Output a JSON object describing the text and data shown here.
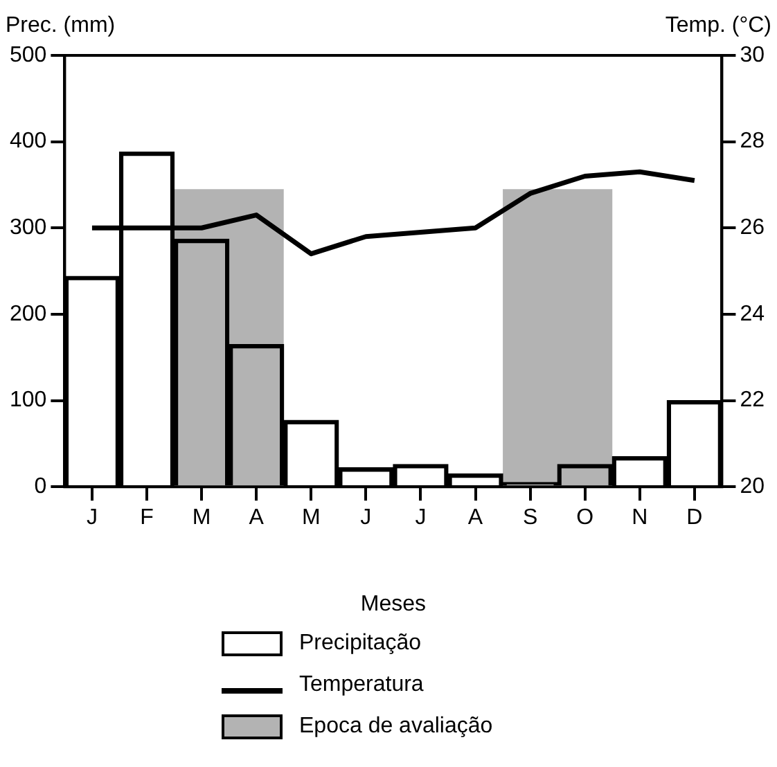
{
  "chart_data": {
    "type": "bar",
    "xlabel": "Meses",
    "ylabel": "Prec. (mm)",
    "y2label": "Temp. (°C)",
    "categories": [
      "J",
      "F",
      "M",
      "A",
      "M",
      "J",
      "J",
      "A",
      "S",
      "O",
      "N",
      "D"
    ],
    "series": [
      {
        "name": "Precipitação",
        "color": "#000000",
        "values": [
          244,
          388,
          287,
          165,
          77,
          22,
          26,
          15,
          5,
          26,
          35,
          100
        ]
      },
      {
        "name": "Temperatura",
        "type": "line",
        "axis": "y2",
        "color": "#000000",
        "values": [
          26,
          26,
          26,
          26.3,
          25.4,
          25.8,
          25.9,
          26,
          26.8,
          27.2,
          27.3,
          27.1
        ]
      }
    ],
    "bands": [
      {
        "axis": "x",
        "from": "M",
        "to": "A",
        "label": "Epoca de avaliação",
        "color": "#b3b3b3"
      },
      {
        "axis": "x",
        "from": "S",
        "to": "O",
        "color": "#b3b3b3"
      }
    ],
    "ylim": [
      0,
      500
    ],
    "yticks": [
      0,
      100,
      200,
      300,
      400,
      500
    ],
    "y2lim": [
      20,
      30
    ],
    "y2ticks": [
      20,
      22,
      24,
      26,
      28,
      30
    ],
    "grid": false,
    "legend": "bottom",
    "marker": "none",
    "line_style": "solid"
  }
}
